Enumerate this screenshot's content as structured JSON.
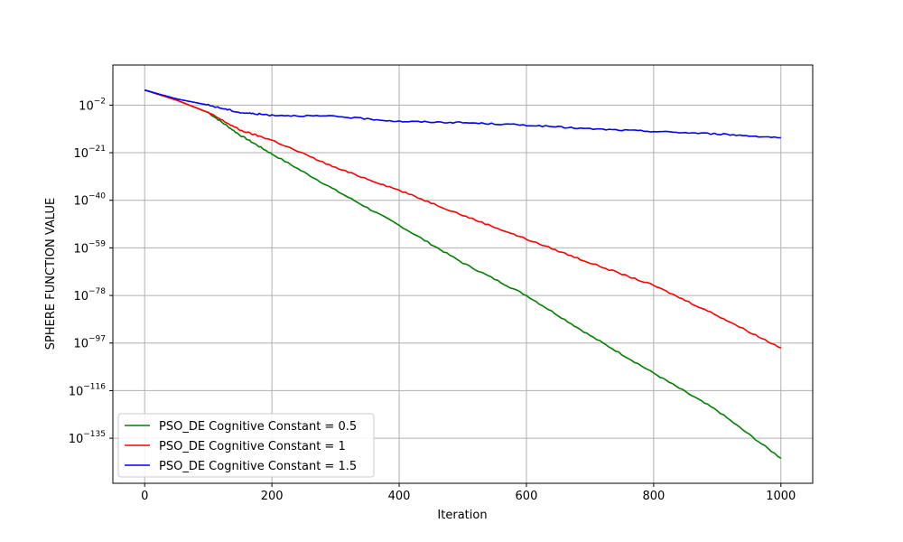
{
  "chart_data": {
    "type": "line",
    "xlabel": "Iteration",
    "ylabel": "SPHERE FUNCTION VALUE",
    "xlim": [
      -50,
      1050
    ],
    "x_ticks": [
      0,
      200,
      400,
      600,
      800,
      1000
    ],
    "x_tick_labels": [
      "0",
      "200",
      "400",
      "600",
      "800",
      "1000"
    ],
    "y_scale": "log",
    "ylim_exponent": [
      -153,
      14
    ],
    "y_ticks_exponent": [
      -135,
      -116,
      -97,
      -78,
      -59,
      -40,
      -21,
      -2
    ],
    "y_tick_labels": [
      {
        "base": "10",
        "exp": "−135"
      },
      {
        "base": "10",
        "exp": "−116"
      },
      {
        "base": "10",
        "exp": "−97"
      },
      {
        "base": "10",
        "exp": "−78"
      },
      {
        "base": "10",
        "exp": "−59"
      },
      {
        "base": "10",
        "exp": "−40"
      },
      {
        "base": "10",
        "exp": "−21"
      },
      {
        "base": "10",
        "exp": "−2"
      }
    ],
    "grid": true,
    "legend_position": "lower-left",
    "series": [
      {
        "name": "PSO_DE Cognitive Constant = 0.5",
        "color": "#008000",
        "x": [
          0,
          50,
          100,
          150,
          200,
          300,
          400,
          500,
          600,
          700,
          800,
          900,
          1000
        ],
        "log10_y": [
          4,
          0,
          -5,
          -14,
          -21.5,
          -36,
          -50,
          -65,
          -78,
          -94,
          -109,
          -124,
          -143
        ]
      },
      {
        "name": "PSO_DE Cognitive Constant = 1",
        "color": "#ff0000",
        "x": [
          0,
          50,
          100,
          150,
          200,
          300,
          400,
          500,
          600,
          700,
          800,
          900,
          1000
        ],
        "log10_y": [
          4,
          0,
          -5,
          -12,
          -16,
          -27,
          -36,
          -46,
          -55.5,
          -65,
          -74,
          -86,
          -99
        ]
      },
      {
        "name": "PSO_DE Cognitive Constant = 1.5",
        "color": "#0000ff",
        "x": [
          0,
          50,
          100,
          150,
          200,
          300,
          400,
          500,
          600,
          700,
          800,
          900,
          1000
        ],
        "log10_y": [
          4,
          0.5,
          -2,
          -5,
          -6,
          -6.5,
          -8.5,
          -9,
          -10,
          -11.5,
          -12.5,
          -13.5,
          -15
        ]
      }
    ]
  }
}
